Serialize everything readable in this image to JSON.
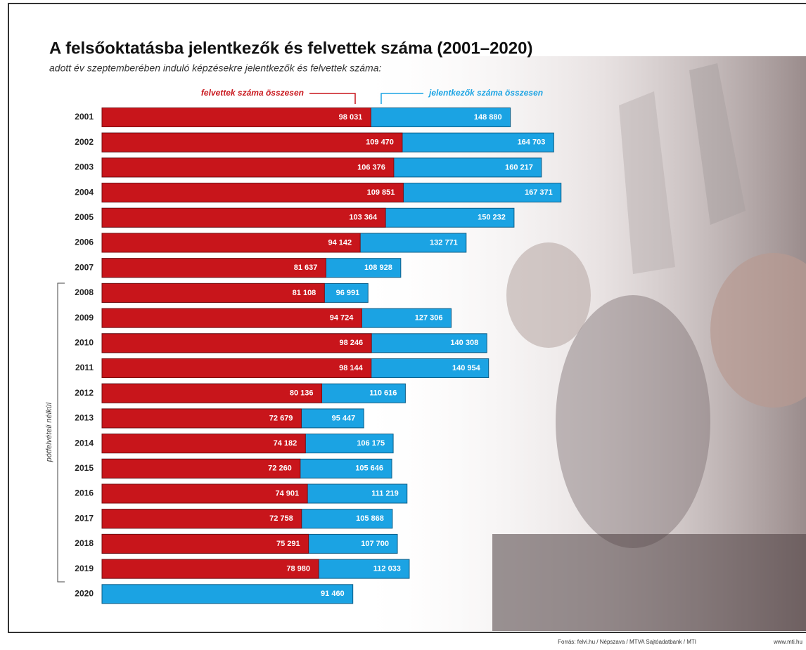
{
  "chart_data": {
    "type": "bar",
    "orientation": "horizontal",
    "title": "A felsőoktatásba jelentkezők és felvettek száma (2001–2020)",
    "subtitle": "adott év szeptemberében induló képzésekre jelentkezők és felvettek száma:",
    "categories": [
      "2001",
      "2002",
      "2003",
      "2004",
      "2005",
      "2006",
      "2007",
      "2008",
      "2009",
      "2010",
      "2011",
      "2012",
      "2013",
      "2014",
      "2015",
      "2016",
      "2017",
      "2018",
      "2019",
      "2020"
    ],
    "series": [
      {
        "name": "felvettek száma összesen",
        "color": "#c8151b",
        "values": [
          98031,
          109470,
          106376,
          109851,
          103364,
          94142,
          81637,
          81108,
          94724,
          98246,
          98144,
          80136,
          72679,
          74182,
          72260,
          74901,
          72758,
          75291,
          78980,
          null
        ],
        "value_labels": [
          "98 031",
          "109 470",
          "106 376",
          "109 851",
          "103 364",
          "94 142",
          "81 637",
          "81 108",
          "94 724",
          "98 246",
          "98 144",
          "80 136",
          "72 679",
          "74 182",
          "72 260",
          "74 901",
          "72 758",
          "75 291",
          "78 980",
          null
        ]
      },
      {
        "name": "jelentkezők száma összesen",
        "color": "#1ba3e3",
        "values": [
          148880,
          164703,
          160217,
          167371,
          150232,
          132771,
          108928,
          96991,
          127306,
          140308,
          140954,
          110616,
          95447,
          106175,
          105646,
          111219,
          105868,
          107700,
          112033,
          91460
        ],
        "value_labels": [
          "148 880",
          "164 703",
          "160 217",
          "167 371",
          "150 232",
          "132 771",
          "108 928",
          "96 991",
          "127 306",
          "140 308",
          "140 954",
          "110 616",
          "95 447",
          "106 175",
          "105 646",
          "111 219",
          "105 868",
          "107 700",
          "112 033",
          "91 460"
        ]
      }
    ],
    "xlim": [
      0,
      200000
    ],
    "annotation": "pótfelvételi nélkül",
    "source": "Forrás: felvi.hu / Népszava / MTVA Sajtóadatbank / MTI",
    "website": "www.mti.hu"
  }
}
